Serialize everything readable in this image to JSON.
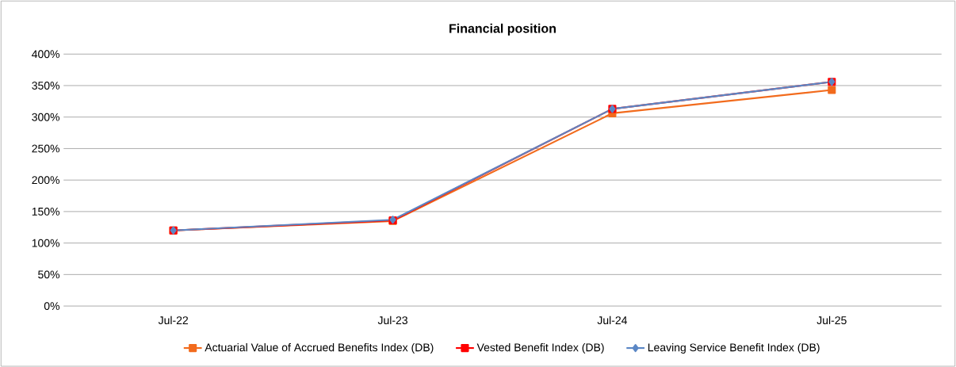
{
  "chart_data": {
    "type": "line",
    "title": "Financial position",
    "categories": [
      "Jul-22",
      "Jul-23",
      "Jul-24",
      "Jul-25"
    ],
    "series": [
      {
        "name": "Actuarial Value of Accrued Benefits Index (DB)",
        "color": "#f26b1d",
        "marker": "square",
        "values": [
          120,
          135,
          306,
          343
        ]
      },
      {
        "name": "Vested Benefit Index (DB)",
        "color": "#ff0000",
        "marker": "square",
        "values": [
          120,
          136,
          313,
          356
        ]
      },
      {
        "name": "Leaving Service Benefit Index (DB)",
        "color": "#5b87c5",
        "marker": "diamond",
        "values": [
          120,
          137,
          313,
          356
        ]
      }
    ],
    "ylim": [
      0,
      400
    ],
    "yticks": [
      {
        "value": 0,
        "label": "0%"
      },
      {
        "value": 50,
        "label": "50%"
      },
      {
        "value": 100,
        "label": "100%"
      },
      {
        "value": 150,
        "label": "150%"
      },
      {
        "value": 200,
        "label": "200%"
      },
      {
        "value": 250,
        "label": "250%"
      },
      {
        "value": 300,
        "label": "300%"
      },
      {
        "value": 350,
        "label": "350%"
      },
      {
        "value": 400,
        "label": "400%"
      }
    ],
    "grid": "y",
    "legend": "bottom",
    "line_style": "solid"
  }
}
